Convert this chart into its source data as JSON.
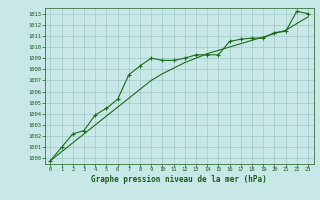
{
  "x": [
    0,
    1,
    2,
    3,
    4,
    5,
    6,
    7,
    8,
    9,
    10,
    11,
    12,
    13,
    14,
    15,
    16,
    17,
    18,
    19,
    20,
    21,
    22,
    23
  ],
  "line1": [
    999.8,
    1001.0,
    1002.2,
    1002.5,
    1003.9,
    1004.5,
    1005.3,
    1007.5,
    1008.3,
    1009.0,
    1008.8,
    1008.8,
    1009.0,
    1009.3,
    1009.3,
    1009.3,
    1010.5,
    1010.7,
    1010.8,
    1010.8,
    1011.3,
    1011.4,
    1013.2,
    1013.0
  ],
  "trend": [
    999.8,
    1000.6,
    1001.4,
    1002.2,
    1003.0,
    1003.8,
    1004.6,
    1005.4,
    1006.2,
    1007.0,
    1007.6,
    1008.1,
    1008.6,
    1009.0,
    1009.4,
    1009.7,
    1010.0,
    1010.3,
    1010.6,
    1010.9,
    1011.2,
    1011.5,
    1012.1,
    1012.7
  ],
  "line_color": "#1a6b1a",
  "bg_color": "#c8e8e8",
  "grid_color": "#a0c8c8",
  "text_color": "#1a5c1a",
  "xlabel": "Graphe pression niveau de la mer (hPa)",
  "ylim": [
    999.5,
    1013.5
  ],
  "xlim": [
    -0.5,
    23.5
  ],
  "yticks": [
    1000,
    1001,
    1002,
    1003,
    1004,
    1005,
    1006,
    1007,
    1008,
    1009,
    1010,
    1011,
    1012,
    1013
  ]
}
